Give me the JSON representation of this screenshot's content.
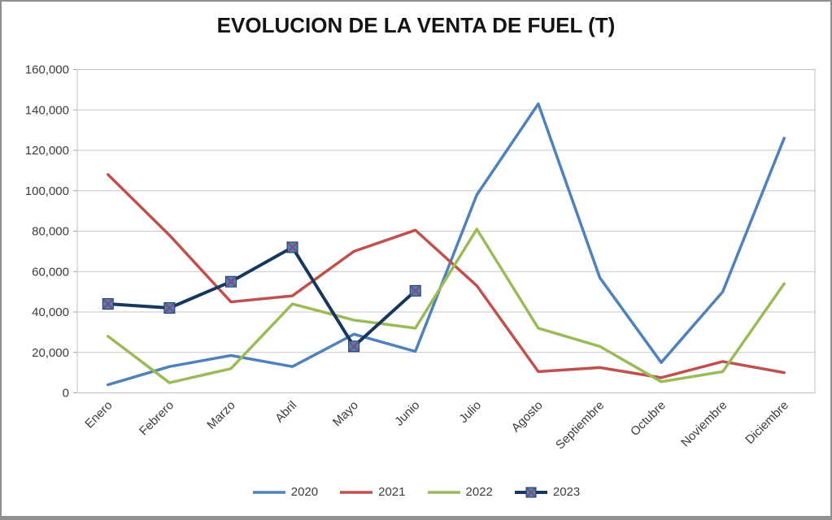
{
  "window": {
    "frame_border_color": "#8f8f8f",
    "background_color": "#ffffff"
  },
  "chart_data": {
    "type": "line",
    "title": "EVOLUCION DE LA VENTA DE FUEL (T)",
    "categories": [
      "Enero",
      "Febrero",
      "Marzo",
      "Abril",
      "Mayo",
      "Junio",
      "Julio",
      "Agosto",
      "Septiembre",
      "Octubre",
      "Noviembre",
      "Diciembre"
    ],
    "series": [
      {
        "name": "2020",
        "color": "#4F81BD",
        "marker": "none",
        "line_width": 3.5,
        "values": [
          4000,
          13000,
          18500,
          13000,
          29000,
          20500,
          98000,
          143000,
          57000,
          15000,
          50000,
          126000
        ]
      },
      {
        "name": "2021",
        "color": "#C0504D",
        "marker": "none",
        "line_width": 3.5,
        "values": [
          108000,
          78000,
          45000,
          48000,
          70000,
          80500,
          53000,
          10500,
          12500,
          7500,
          15500,
          10000
        ]
      },
      {
        "name": "2022",
        "color": "#9BBB59",
        "marker": "none",
        "line_width": 3.5,
        "values": [
          28000,
          5000,
          12000,
          44000,
          36000,
          32000,
          81000,
          32000,
          23000,
          5500,
          10500,
          54000
        ]
      },
      {
        "name": "2023",
        "color": "#17375E",
        "marker": "square-x",
        "marker_fill": "#4F81BD",
        "marker_x_color": "#7E4D79",
        "line_width": 4,
        "values": [
          44000,
          42000,
          55000,
          72000,
          23000,
          50500,
          null,
          null,
          null,
          null,
          null,
          null
        ]
      }
    ],
    "ylim": [
      0,
      160000
    ],
    "ytick_step": 20000,
    "ytick_labels": [
      "0",
      "20,000",
      "40,000",
      "60,000",
      "80,000",
      "100,000",
      "120,000",
      "140,000",
      "160,000"
    ],
    "grid": "horizontal",
    "gridline_color": "#C6C6C6",
    "plot_border_color": "#BFBFBF",
    "axis_text_color": "#3C3C3C",
    "legend_position": "bottom",
    "x_label_rotation": -45
  }
}
